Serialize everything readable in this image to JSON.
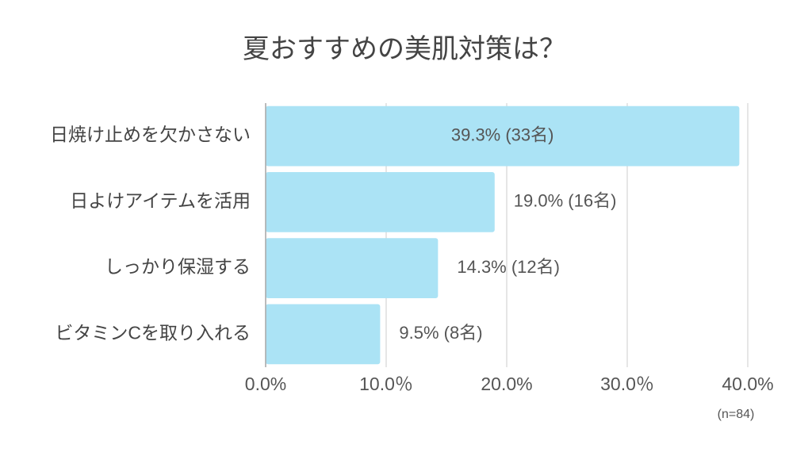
{
  "chart_data": {
    "type": "bar",
    "orientation": "horizontal",
    "title": "夏おすすめの美肌対策は？",
    "categories": [
      "日焼け止めを欠かさない",
      "日よけアイテムを活用",
      "しっかり保湿する",
      "ビタミンCを取り入れる"
    ],
    "values": [
      39.3,
      19.0,
      14.3,
      9.5
    ],
    "value_labels": [
      "39.3% (33名)",
      "19.0% (16名)",
      "14.3% (12名)",
      "9.5% (8名)"
    ],
    "color": "#abe3f5",
    "xlim": [
      0,
      40
    ],
    "xticks": [
      {
        "value": 0,
        "label": "0.0%"
      },
      {
        "value": 10,
        "label": "10.0％"
      },
      {
        "value": 20,
        "label": "20.0%"
      },
      {
        "value": 30,
        "label": "30.0％"
      },
      {
        "value": 40,
        "label": "40.0%"
      }
    ],
    "grid": true,
    "annotation": "(n=84)"
  }
}
